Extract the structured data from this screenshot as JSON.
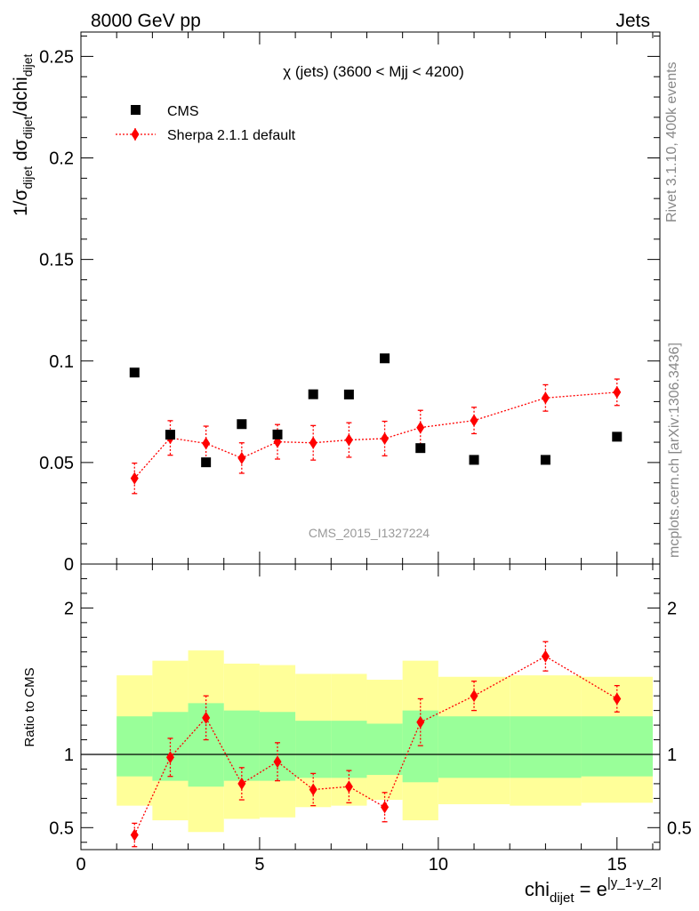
{
  "header": {
    "left": "8000 GeV pp",
    "right": "Jets"
  },
  "side": {
    "rivet": "Rivet 3.1.10,  400k events",
    "mcplots": "mcplots.cern.ch [arXiv:1306.3436]"
  },
  "colors": {
    "data": "#000000",
    "mc": "#ff0000",
    "band_inner": "#99ff99",
    "band_outer": "#ffff99"
  },
  "chart_data": [
    {
      "type": "scatter",
      "title": "χ (jets) (3600 < Mjj < 4200)",
      "watermark": "CMS_2015_I1327224",
      "ylabel_main": "1/σ",
      "ylabel_sub1": "dijet",
      "ylabel_mid": " dσ",
      "ylabel_sub2": "dijet",
      "ylabel_tail": "/dchi",
      "ylabel_sub3": "dijet",
      "xlim": [
        0,
        16.2
      ],
      "ylim": [
        0,
        0.262
      ],
      "yticks": [
        {
          "v": 0,
          "label": "0"
        },
        {
          "v": 0.05,
          "label": "0.05"
        },
        {
          "v": 0.1,
          "label": "0.1"
        },
        {
          "v": 0.15,
          "label": "0.15"
        },
        {
          "v": 0.2,
          "label": "0.2"
        },
        {
          "v": 0.25,
          "label": "0.25"
        }
      ],
      "legend": [
        {
          "label": "CMS",
          "marker": "square"
        },
        {
          "label": "Sherpa 2.1.1 default",
          "marker": "diamond"
        }
      ],
      "series": [
        {
          "name": "CMS",
          "x": [
            1.5,
            2.5,
            3.5,
            4.5,
            5.5,
            6.5,
            7.5,
            8.5,
            9.5,
            11,
            13,
            15
          ],
          "y": [
            0.0943,
            0.0637,
            0.0501,
            0.0689,
            0.0638,
            0.0836,
            0.0835,
            0.1013,
            0.0571,
            0.0513,
            0.0513,
            0.0627
          ]
        },
        {
          "name": "Sherpa 2.1.1 default",
          "x": [
            1.5,
            2.5,
            3.5,
            4.5,
            5.5,
            6.5,
            7.5,
            8.5,
            9.5,
            11,
            13,
            15
          ],
          "y": [
            0.0422,
            0.0621,
            0.0594,
            0.0522,
            0.0602,
            0.0597,
            0.0611,
            0.0618,
            0.0672,
            0.0707,
            0.0818,
            0.0846
          ],
          "yerr": [
            0.0075,
            0.0085,
            0.0085,
            0.0075,
            0.0085,
            0.0085,
            0.0085,
            0.0085,
            0.0085,
            0.0065,
            0.0065,
            0.0065
          ]
        }
      ]
    },
    {
      "type": "scatter",
      "ylabel": "Ratio to CMS",
      "xlabel_main": "chi",
      "xlabel_sub": "dijet",
      "xlabel_eq": " = e",
      "xlabel_sup": "|y_1-y_2|",
      "xlim": [
        0,
        16.2
      ],
      "ylim": [
        0.35,
        2.3
      ],
      "ref_y": 1,
      "xticks": [
        {
          "v": 0,
          "label": "0"
        },
        {
          "v": 5,
          "label": "5"
        },
        {
          "v": 10,
          "label": "10"
        },
        {
          "v": 15,
          "label": "15"
        }
      ],
      "yticks": [
        {
          "v": 0.5,
          "label": "0.5"
        },
        {
          "v": 1,
          "label": "1"
        },
        {
          "v": 2,
          "label": "2"
        }
      ],
      "bands": [
        {
          "x0": 1,
          "x1": 2,
          "in_lo": 0.85,
          "in_hi": 1.26,
          "out_lo": 0.65,
          "out_hi": 1.54
        },
        {
          "x0": 2,
          "x1": 3,
          "in_lo": 0.82,
          "in_hi": 1.29,
          "out_lo": 0.55,
          "out_hi": 1.64
        },
        {
          "x0": 3,
          "x1": 4,
          "in_lo": 0.78,
          "in_hi": 1.35,
          "out_lo": 0.47,
          "out_hi": 1.71
        },
        {
          "x0": 4,
          "x1": 5,
          "in_lo": 0.82,
          "in_hi": 1.3,
          "out_lo": 0.56,
          "out_hi": 1.62
        },
        {
          "x0": 5,
          "x1": 6,
          "in_lo": 0.82,
          "in_hi": 1.29,
          "out_lo": 0.57,
          "out_hi": 1.61
        },
        {
          "x0": 6,
          "x1": 7,
          "in_lo": 0.84,
          "in_hi": 1.23,
          "out_lo": 0.64,
          "out_hi": 1.55
        },
        {
          "x0": 7,
          "x1": 8,
          "in_lo": 0.84,
          "in_hi": 1.23,
          "out_lo": 0.65,
          "out_hi": 1.55
        },
        {
          "x0": 8,
          "x1": 9,
          "in_lo": 0.86,
          "in_hi": 1.21,
          "out_lo": 0.69,
          "out_hi": 1.51
        },
        {
          "x0": 9,
          "x1": 10,
          "in_lo": 0.81,
          "in_hi": 1.3,
          "out_lo": 0.55,
          "out_hi": 1.64
        },
        {
          "x0": 10,
          "x1": 12,
          "in_lo": 0.84,
          "in_hi": 1.26,
          "out_lo": 0.66,
          "out_hi": 1.53
        },
        {
          "x0": 12,
          "x1": 14,
          "in_lo": 0.84,
          "in_hi": 1.26,
          "out_lo": 0.65,
          "out_hi": 1.54
        },
        {
          "x0": 14,
          "x1": 16,
          "in_lo": 0.85,
          "in_hi": 1.26,
          "out_lo": 0.67,
          "out_hi": 1.53
        }
      ],
      "series": [
        {
          "name": "Sherpa 2.1.1 default",
          "x": [
            1.5,
            2.5,
            3.5,
            4.5,
            5.5,
            6.5,
            7.5,
            8.5,
            9.5,
            11,
            13,
            15
          ],
          "y": [
            0.45,
            0.98,
            1.25,
            0.8,
            0.95,
            0.76,
            0.78,
            0.64,
            1.22,
            1.4,
            1.67,
            1.38
          ],
          "yerr": [
            0.08,
            0.13,
            0.15,
            0.11,
            0.13,
            0.11,
            0.11,
            0.1,
            0.16,
            0.1,
            0.1,
            0.09
          ]
        }
      ]
    }
  ]
}
